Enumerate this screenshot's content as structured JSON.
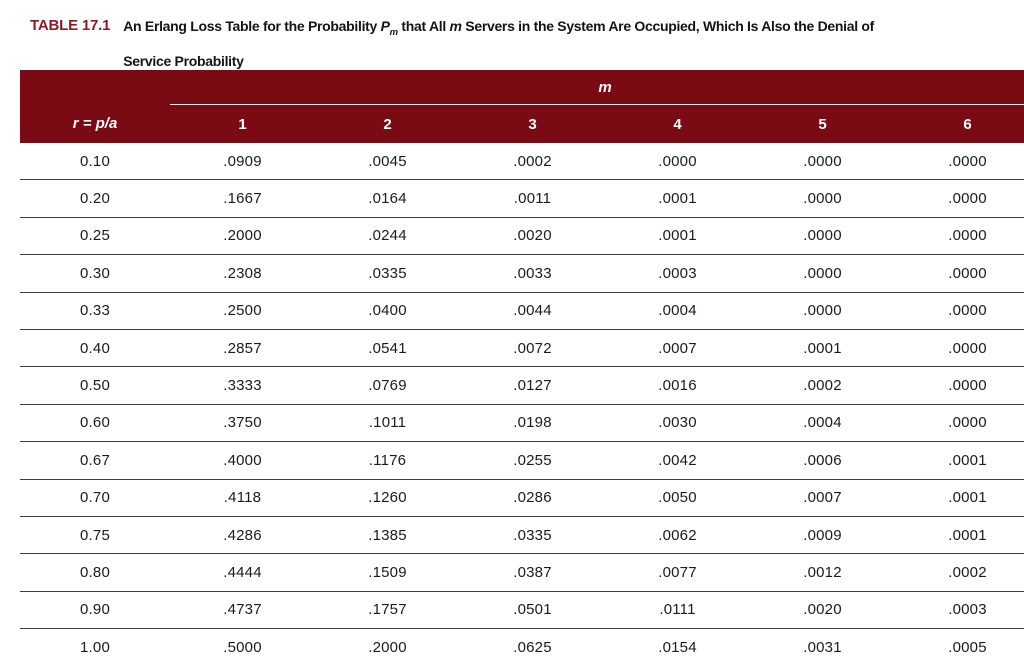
{
  "colors": {
    "header_background": "#7a0b15",
    "title_label": "#8e1a26",
    "header_text": "#ffffff",
    "body_text": "#1b1b1b",
    "row_divider": "#3d3d3d"
  },
  "title": {
    "label": "TABLE 17.1",
    "caption_plain": "An Erlang Loss Table for the Probability Pm that All m Servers in the System Are Occupied, Which Is Also the Denial of Service Probability",
    "caption_segments": [
      {
        "t": "An Erlang Loss Table for the Probability "
      },
      {
        "t": "P",
        "style": "italic"
      },
      {
        "t": "m",
        "style": "sub-italic"
      },
      {
        "t": " that All "
      },
      {
        "t": "m",
        "style": "italic"
      },
      {
        "t": " Servers in the System Are Occupied, Which Is Also the Denial of"
      },
      {
        "break": true
      },
      {
        "t": "Service Probability"
      }
    ]
  },
  "table": {
    "group_header": "m",
    "row_header_label": "r = p/a",
    "m_columns": [
      "1",
      "2",
      "3",
      "4",
      "5",
      "6"
    ],
    "rows": [
      {
        "r": "0.10",
        "values": [
          ".0909",
          ".0045",
          ".0002",
          ".0000",
          ".0000",
          ".0000"
        ]
      },
      {
        "r": "0.20",
        "values": [
          ".1667",
          ".0164",
          ".0011",
          ".0001",
          ".0000",
          ".0000"
        ]
      },
      {
        "r": "0.25",
        "values": [
          ".2000",
          ".0244",
          ".0020",
          ".0001",
          ".0000",
          ".0000"
        ]
      },
      {
        "r": "0.30",
        "values": [
          ".2308",
          ".0335",
          ".0033",
          ".0003",
          ".0000",
          ".0000"
        ]
      },
      {
        "r": "0.33",
        "values": [
          ".2500",
          ".0400",
          ".0044",
          ".0004",
          ".0000",
          ".0000"
        ]
      },
      {
        "r": "0.40",
        "values": [
          ".2857",
          ".0541",
          ".0072",
          ".0007",
          ".0001",
          ".0000"
        ]
      },
      {
        "r": "0.50",
        "values": [
          ".3333",
          ".0769",
          ".0127",
          ".0016",
          ".0002",
          ".0000"
        ]
      },
      {
        "r": "0.60",
        "values": [
          ".3750",
          ".1011",
          ".0198",
          ".0030",
          ".0004",
          ".0000"
        ]
      },
      {
        "r": "0.67",
        "values": [
          ".4000",
          ".1176",
          ".0255",
          ".0042",
          ".0006",
          ".0001"
        ]
      },
      {
        "r": "0.70",
        "values": [
          ".4118",
          ".1260",
          ".0286",
          ".0050",
          ".0007",
          ".0001"
        ]
      },
      {
        "r": "0.75",
        "values": [
          ".4286",
          ".1385",
          ".0335",
          ".0062",
          ".0009",
          ".0001"
        ]
      },
      {
        "r": "0.80",
        "values": [
          ".4444",
          ".1509",
          ".0387",
          ".0077",
          ".0012",
          ".0002"
        ]
      },
      {
        "r": "0.90",
        "values": [
          ".4737",
          ".1757",
          ".0501",
          ".0111",
          ".0020",
          ".0003"
        ]
      },
      {
        "r": "1.00",
        "values": [
          ".5000",
          ".2000",
          ".0625",
          ".0154",
          ".0031",
          ".0005"
        ]
      }
    ]
  },
  "chart_data": {
    "type": "table",
    "title": "An Erlang Loss Table for the Probability Pm that All m Servers in the System Are Occupied, Which Is Also the Denial of Service Probability",
    "columns": [
      "r = p/a",
      "1",
      "2",
      "3",
      "4",
      "5",
      "6"
    ],
    "rows": [
      [
        0.1,
        0.0909,
        0.0045,
        0.0002,
        0.0,
        0.0,
        0.0
      ],
      [
        0.2,
        0.1667,
        0.0164,
        0.0011,
        0.0001,
        0.0,
        0.0
      ],
      [
        0.25,
        0.2,
        0.0244,
        0.002,
        0.0001,
        0.0,
        0.0
      ],
      [
        0.3,
        0.2308,
        0.0335,
        0.0033,
        0.0003,
        0.0,
        0.0
      ],
      [
        0.33,
        0.25,
        0.04,
        0.0044,
        0.0004,
        0.0,
        0.0
      ],
      [
        0.4,
        0.2857,
        0.0541,
        0.0072,
        0.0007,
        0.0001,
        0.0
      ],
      [
        0.5,
        0.3333,
        0.0769,
        0.0127,
        0.0016,
        0.0002,
        0.0
      ],
      [
        0.6,
        0.375,
        0.1011,
        0.0198,
        0.003,
        0.0004,
        0.0
      ],
      [
        0.67,
        0.4,
        0.1176,
        0.0255,
        0.0042,
        0.0006,
        0.0001
      ],
      [
        0.7,
        0.4118,
        0.126,
        0.0286,
        0.005,
        0.0007,
        0.0001
      ],
      [
        0.75,
        0.4286,
        0.1385,
        0.0335,
        0.0062,
        0.0009,
        0.0001
      ],
      [
        0.8,
        0.4444,
        0.1509,
        0.0387,
        0.0077,
        0.0012,
        0.0002
      ],
      [
        0.9,
        0.4737,
        0.1757,
        0.0501,
        0.0111,
        0.002,
        0.0003
      ],
      [
        1.0,
        0.5,
        0.2,
        0.0625,
        0.0154,
        0.0031,
        0.0005
      ]
    ]
  }
}
